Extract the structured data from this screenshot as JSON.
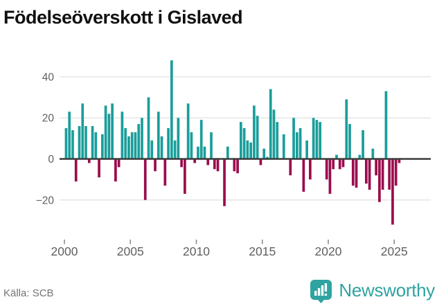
{
  "title": "Födelseöverskott i Gislaved",
  "footer": {
    "source": "Källa: SCB"
  },
  "brand": {
    "name": "Newsworthy",
    "icon": "bar-chart-badge-icon",
    "color": "#2fa3a0"
  },
  "colors": {
    "positive": "#1a9e9b",
    "negative": "#9b0c4d",
    "grid": "#e3e3e3",
    "zero_line": "#3c3c3c",
    "axis_text": "#606060",
    "tick": "#8a8a8a",
    "title_text": "#111111",
    "source_text": "#737373"
  },
  "chart_data": {
    "type": "bar",
    "title": "Födelseöverskott i Gislaved",
    "frequency": "quarterly",
    "x_start": "2000-Q1",
    "x_end": "2025-Q2",
    "x_tick_labels": [
      "2000",
      "2005",
      "2010",
      "2015",
      "2020",
      "2025"
    ],
    "y_ticks": [
      40,
      20,
      0,
      -20
    ],
    "y_gridlines": [
      40,
      20,
      -20
    ],
    "ylim": [
      -36,
      50
    ],
    "legend": "none",
    "series": [
      {
        "name": "Födelseöverskott",
        "values": [
          15,
          23,
          14,
          -11,
          16,
          27,
          16,
          -2,
          16,
          13,
          -9,
          12,
          26,
          22,
          27,
          -11,
          -4,
          23,
          15,
          11,
          13,
          13,
          17,
          20,
          -20,
          30,
          9,
          -6,
          23,
          11,
          -13,
          15,
          48,
          9,
          20,
          -4,
          -17,
          27,
          13,
          -2,
          6,
          19,
          6,
          -3,
          13,
          -5,
          -6,
          0,
          -23,
          6,
          0,
          -6,
          -7,
          18,
          15,
          9,
          8,
          26,
          21,
          -3,
          5,
          1,
          34,
          24,
          18,
          0,
          12,
          0,
          -8,
          20,
          13,
          15,
          -16,
          9,
          -10,
          20,
          19,
          18,
          0,
          -10,
          -17,
          -5,
          2,
          -5,
          -4,
          29,
          17,
          -13,
          -14,
          2,
          14,
          -12,
          -15,
          5,
          -8,
          -21,
          -15,
          33,
          -15,
          -32,
          -13,
          -2
        ]
      }
    ]
  }
}
